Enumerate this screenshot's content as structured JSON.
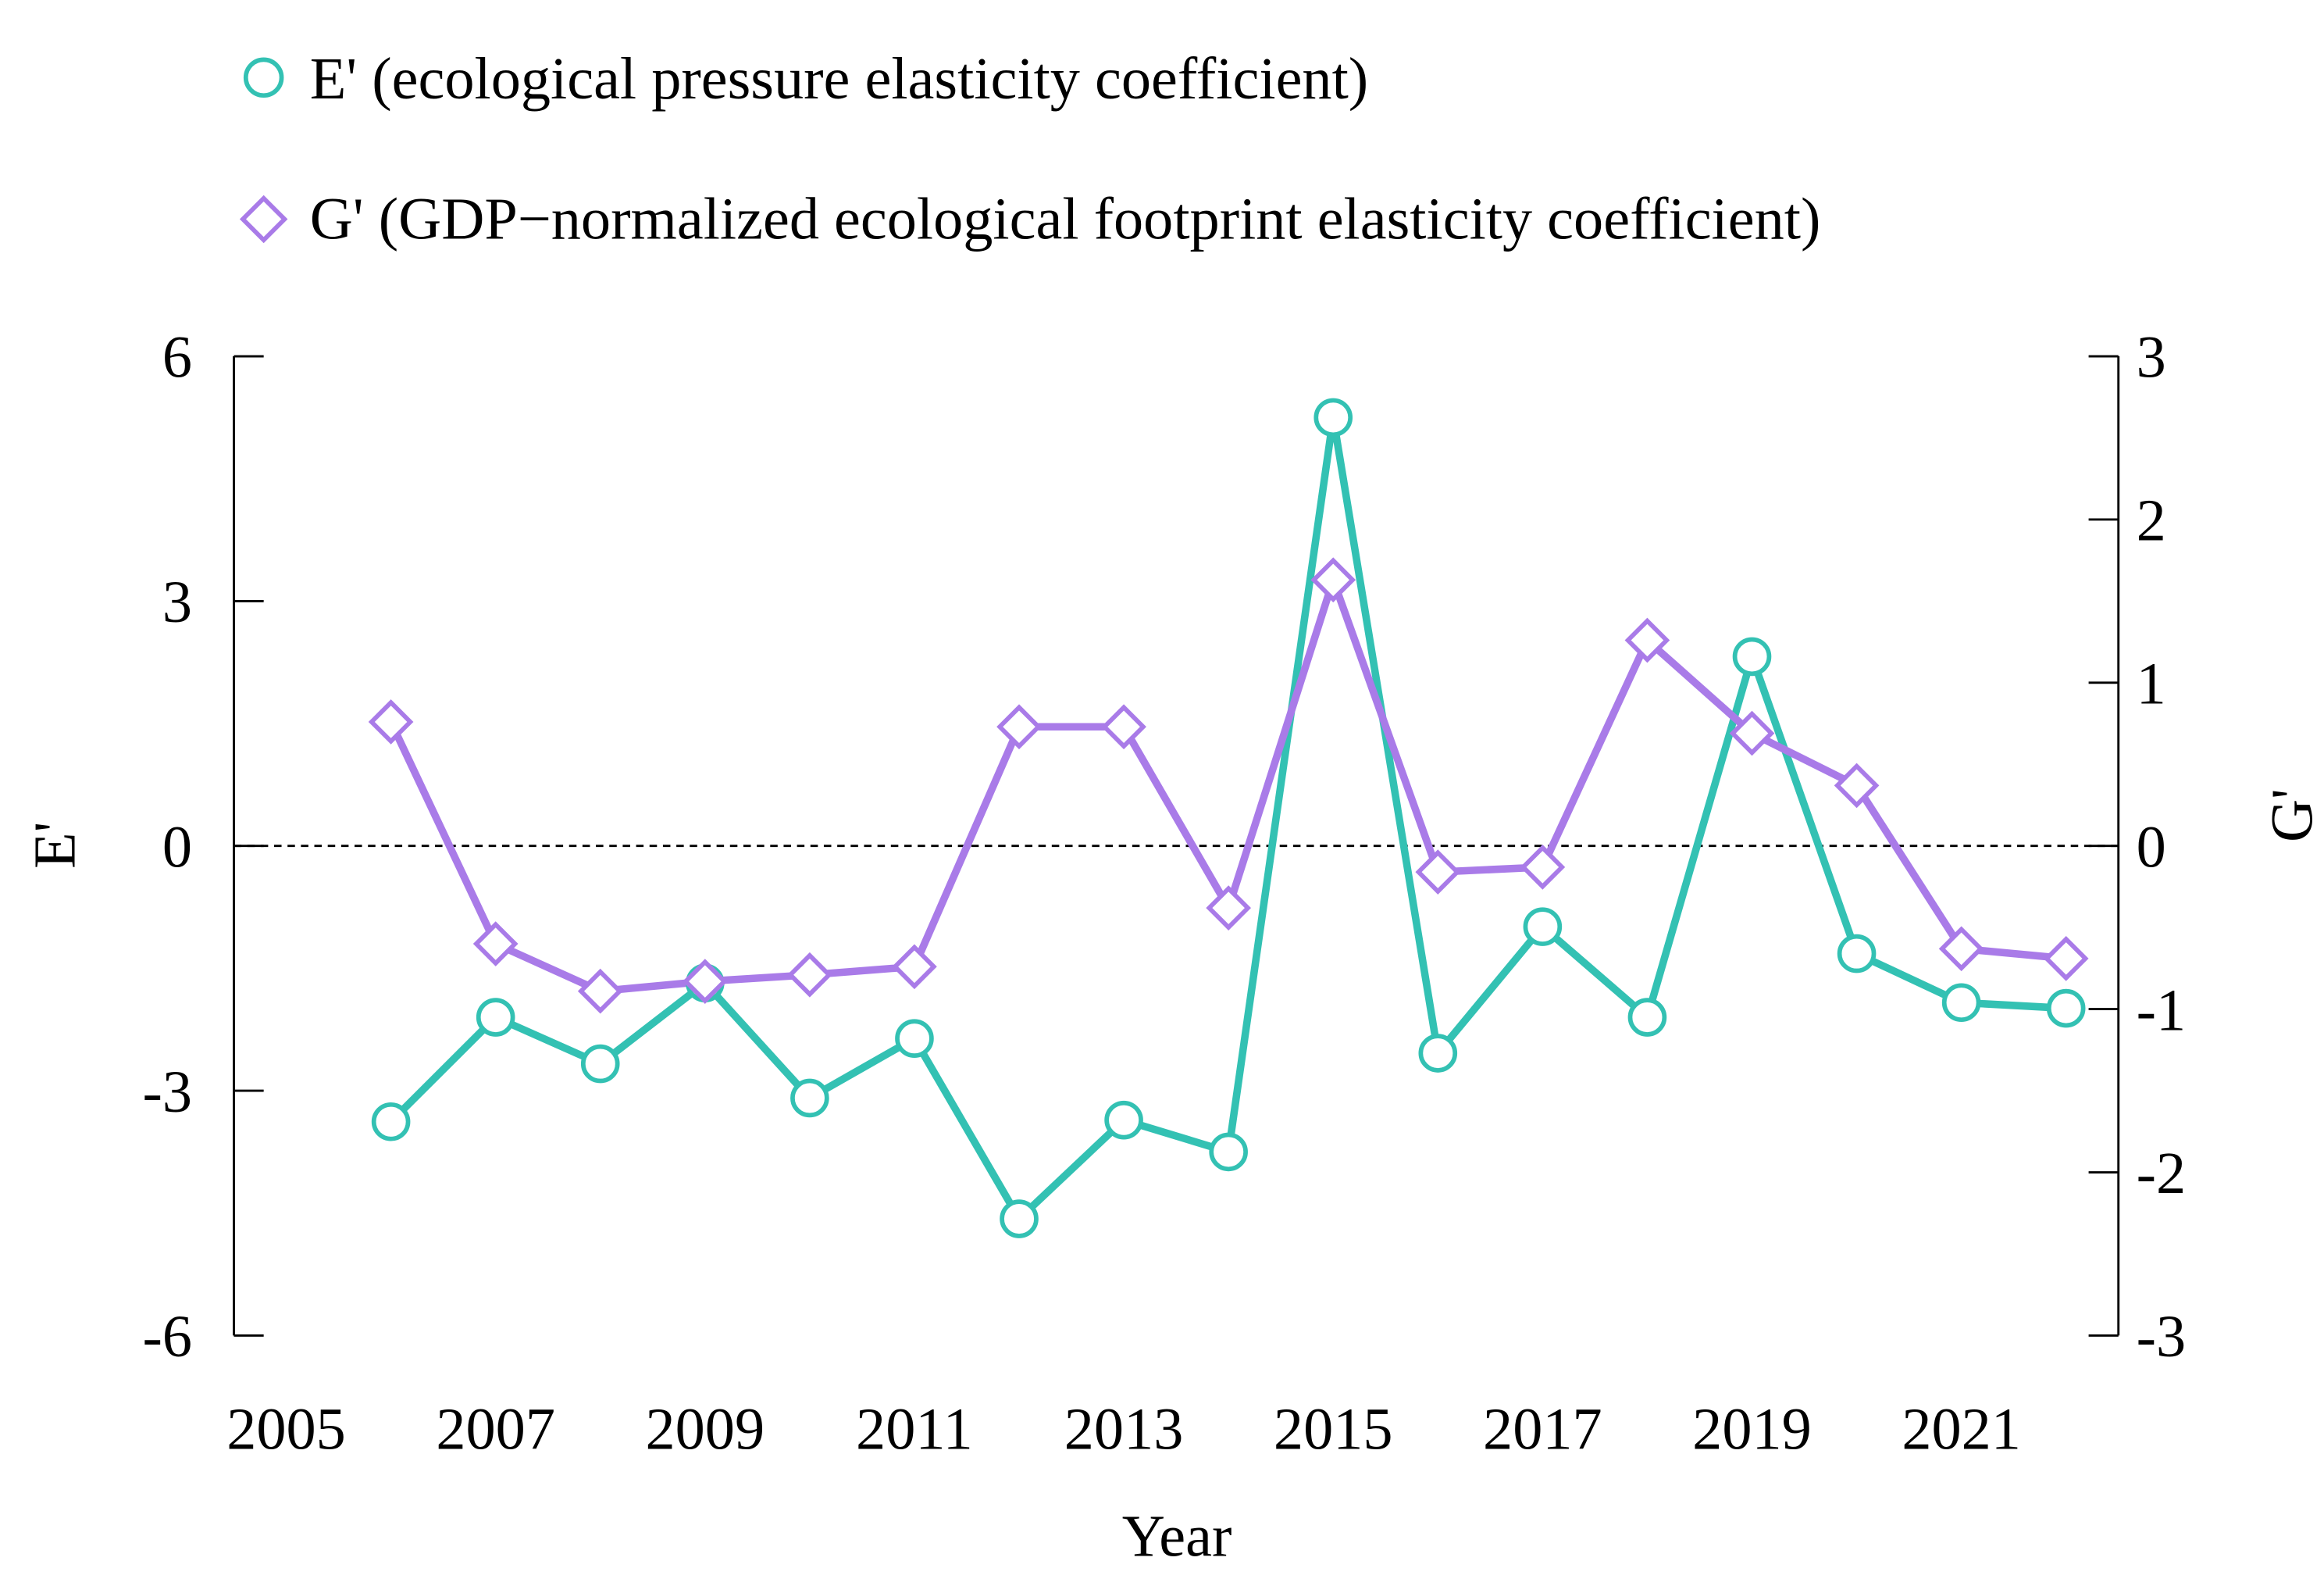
{
  "chart_data": {
    "type": "line",
    "xlabel": "Year",
    "ylabel_left": "E'",
    "ylabel_right": "G'",
    "xlim": [
      2004.5,
      2022.5
    ],
    "ylim_left": [
      -6,
      6
    ],
    "ylim_right": [
      -3,
      3
    ],
    "x_ticks": [
      2005,
      2007,
      2009,
      2011,
      2013,
      2015,
      2017,
      2019,
      2021
    ],
    "y_ticks_left": [
      6,
      3,
      0,
      -3,
      -6
    ],
    "y_ticks_right": [
      3,
      2,
      1,
      0,
      -1,
      -2,
      -3
    ],
    "reference_line": 0,
    "legend_placement": "top",
    "x": [
      2006,
      2007,
      2008,
      2009,
      2010,
      2011,
      2012,
      2013,
      2014,
      2015,
      2016,
      2017,
      2018,
      2019,
      2020,
      2021,
      2022
    ],
    "series": [
      {
        "name": "E' (ecological pressure elasticity coefficient)",
        "axis": "left",
        "marker": "circle",
        "color": "#33C1B3",
        "values": [
          -3.38,
          -2.1,
          -2.67,
          -1.68,
          -3.09,
          -2.36,
          -4.57,
          -3.36,
          -3.75,
          5.25,
          -2.54,
          -0.99,
          -2.1,
          2.32,
          -1.32,
          -1.92,
          -1.99
        ]
      },
      {
        "name": "G' (GDP−normalized ecological footprint elasticity coefficient)",
        "axis": "right",
        "marker": "diamond",
        "color": "#A97BE8",
        "values": [
          0.76,
          -0.6,
          -0.89,
          -0.83,
          -0.79,
          -0.74,
          0.73,
          0.73,
          -0.38,
          1.63,
          -0.16,
          -0.13,
          1.26,
          0.69,
          0.37,
          -0.63,
          -0.69
        ]
      }
    ]
  }
}
